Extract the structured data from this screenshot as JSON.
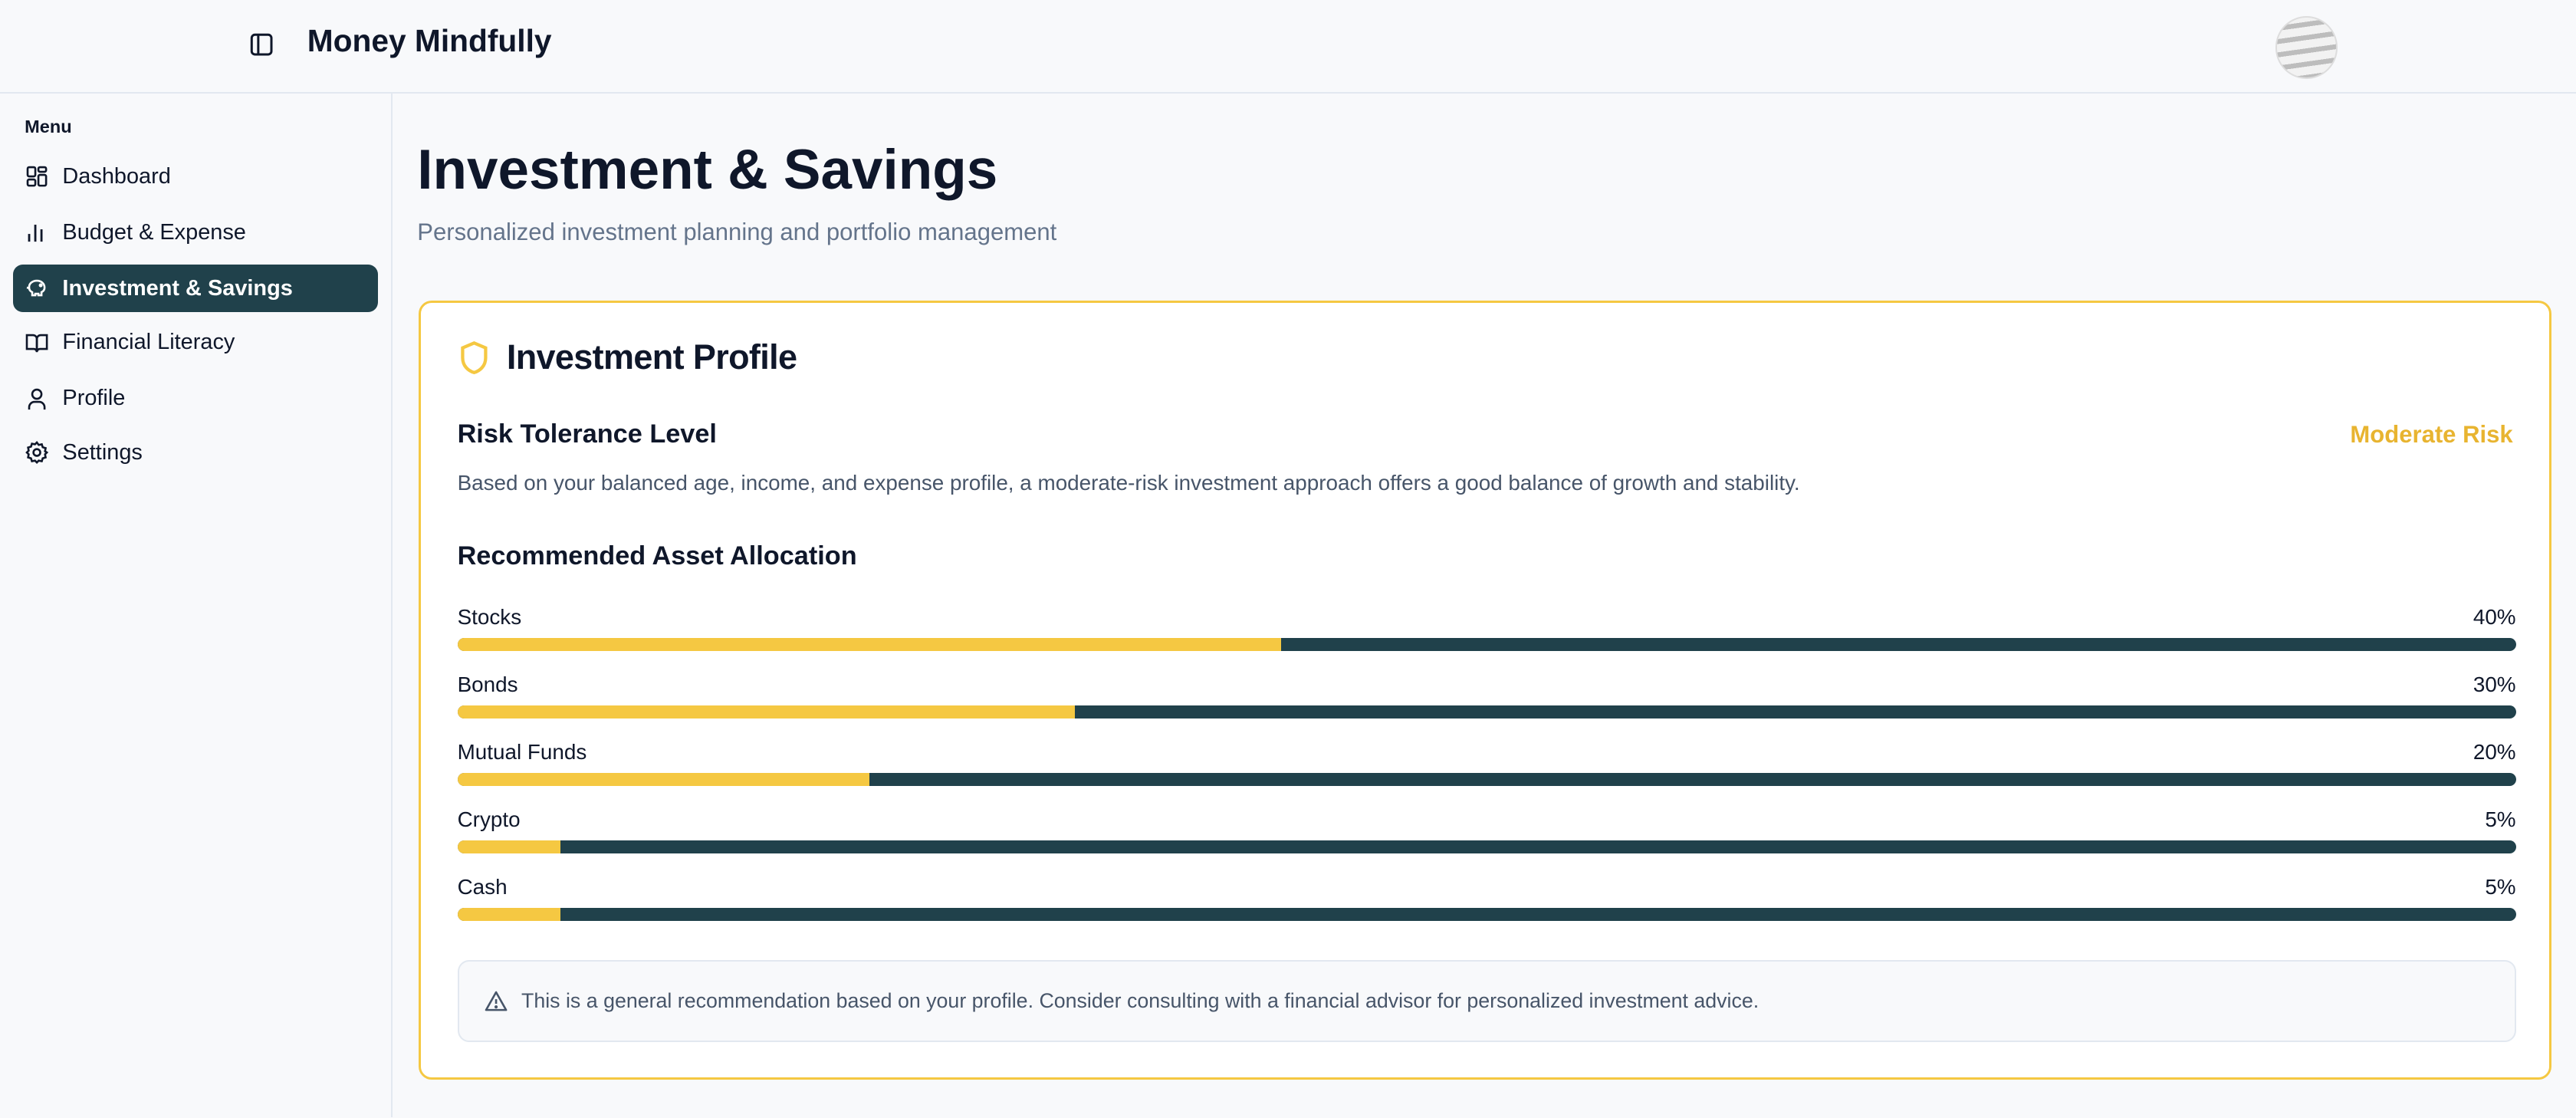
{
  "header": {
    "app_title": "Money Mindfully",
    "toggle_icon": "sidebar-toggle-icon",
    "avatar_icon": "user-avatar"
  },
  "sidebar": {
    "menu_label": "Menu",
    "items": [
      {
        "label": "Dashboard",
        "icon": "dashboard-icon",
        "active": false
      },
      {
        "label": "Budget & Expense",
        "icon": "bar-chart-icon",
        "active": false
      },
      {
        "label": "Investment & Savings",
        "icon": "piggy-bank-icon",
        "active": true
      },
      {
        "label": "Financial Literacy",
        "icon": "book-icon",
        "active": false
      },
      {
        "label": "Profile",
        "icon": "user-icon",
        "active": false
      },
      {
        "label": "Settings",
        "icon": "gear-icon",
        "active": false
      }
    ]
  },
  "main": {
    "title": "Investment & Savings",
    "subtitle": "Personalized investment planning and portfolio management",
    "card": {
      "title": "Investment Profile",
      "icon": "shield-icon",
      "risk_label": "Risk Tolerance Level",
      "risk_value": "Moderate Risk",
      "risk_description": "Based on your balanced age, income, and expense profile, a moderate-risk investment approach offers a good balance of growth and stability.",
      "allocation_title": "Recommended Asset Allocation",
      "allocations": [
        {
          "label": "Stocks",
          "percent_text": "40%",
          "percent": 40
        },
        {
          "label": "Bonds",
          "percent_text": "30%",
          "percent": 30
        },
        {
          "label": "Mutual Funds",
          "percent_text": "20%",
          "percent": 20
        },
        {
          "label": "Crypto",
          "percent_text": "5%",
          "percent": 5
        },
        {
          "label": "Cash",
          "percent_text": "5%",
          "percent": 5
        }
      ],
      "note": "This is a general recommendation based on your profile. Consider consulting with a financial advisor for personalized investment advice."
    }
  },
  "colors": {
    "accent": "#f5c842",
    "primary": "#20414b",
    "risk": "#e8b430"
  }
}
